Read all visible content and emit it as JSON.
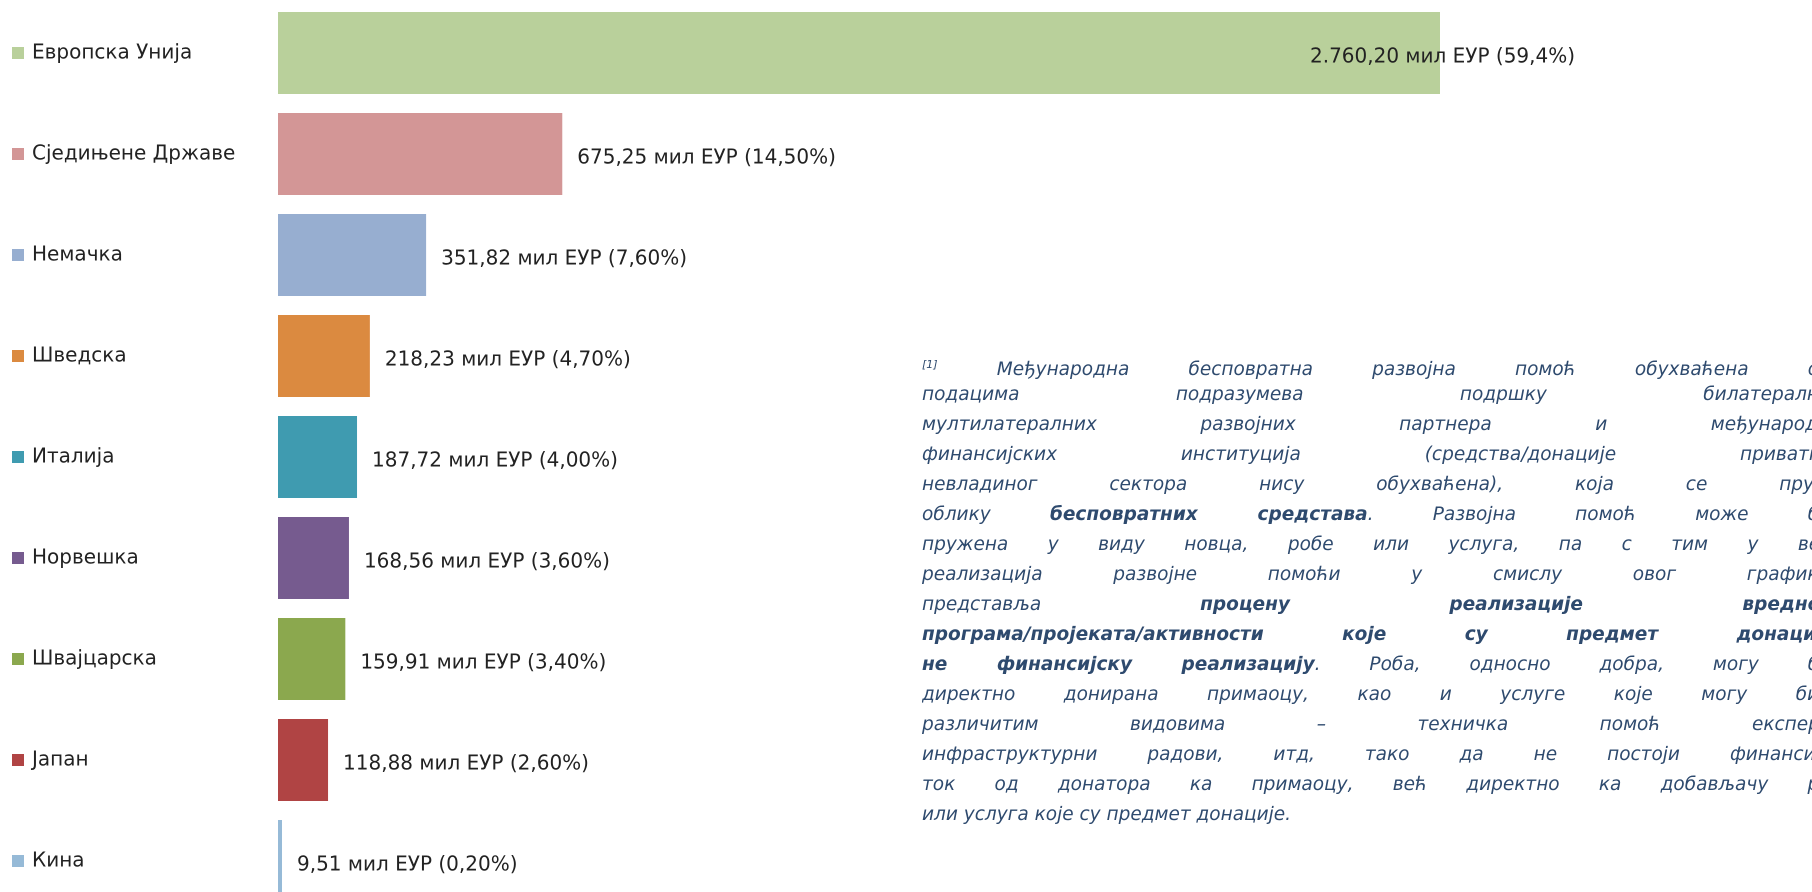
{
  "chart_data": {
    "type": "bar",
    "orientation": "horizontal",
    "categories": [
      "Европска Унија",
      "Сједињене Државе",
      "Немачка",
      "Шведска",
      "Италија",
      "Норвешка",
      "Швајцарска",
      "Јапан",
      "Кина"
    ],
    "values": [
      2760.2,
      675.25,
      351.82,
      218.23,
      187.72,
      168.56,
      159.91,
      118.88,
      9.51
    ],
    "value_labels": [
      "2.760,20  мил ЕУР  (59,4%)",
      "675,25 мил ЕУР (14,50%)",
      "351,82 мил ЕУР (7,60%)",
      "218,23 мил ЕУР (4,70%)",
      "187,72 мил ЕУР (4,00%)",
      "168,56  мил ЕУР (3,60%)",
      "159,91 мил ЕУР (3,40%)",
      "118,88 мил ЕУР (2,60%)",
      "9,51 мил ЕУР (0,20%)"
    ],
    "colors": [
      "#b9d09b",
      "#d39696",
      "#97aed0",
      "#db8a40",
      "#3f9bb0",
      "#765b8f",
      "#8ba84e",
      "#b04444",
      "#96bad7"
    ]
  },
  "footnote": {
    "marker": "[1]",
    "lines": [
      [
        {
          "text": "Међународна бесповратна развојна помоћ обухваћена ови"
        }
      ],
      [
        {
          "text": "подацима подразумева подршку билатералних"
        }
      ],
      [
        {
          "text": "мултилатералних развојних партнера и међународни"
        }
      ],
      [
        {
          "text": "финансијских институција (средства/донације приватног"
        }
      ],
      [
        {
          "text": "невладиног сектора нису обухваћена), која се пружа"
        }
      ],
      [
        {
          "text": "облику "
        },
        {
          "text": "бесповратних средстава",
          "bold": true
        },
        {
          "text": ". Развојна помоћ може бит"
        }
      ],
      [
        {
          "text": "пружена у виду новца, робе или услуга, па с тим у вези"
        }
      ],
      [
        {
          "text": "реализација развојне помоћи у смислу овог графикон"
        }
      ],
      [
        {
          "text": "представља "
        },
        {
          "text": "процену реализације вредност",
          "bold": true
        }
      ],
      [
        {
          "text": "програма/пројеката/активности које су предмет донације,",
          "bold": true
        }
      ],
      [
        {
          "text": "не финансијску реализацију",
          "bold": true
        },
        {
          "text": ". Роба, односно добра, могу бит"
        }
      ],
      [
        {
          "text": "директно донирана примаоцу, као и услуге које могу бити"
        }
      ],
      [
        {
          "text": "различитим видовима – техничка помоћ експерат"
        }
      ],
      [
        {
          "text": "инфраструктурни радови, итд, тако да не постоји финансијск"
        }
      ],
      [
        {
          "text": "ток од донатора ка примаоцу, већ директно ка добављачу роб"
        }
      ],
      [
        {
          "text": "или услуга које су предмет донације."
        }
      ]
    ]
  }
}
